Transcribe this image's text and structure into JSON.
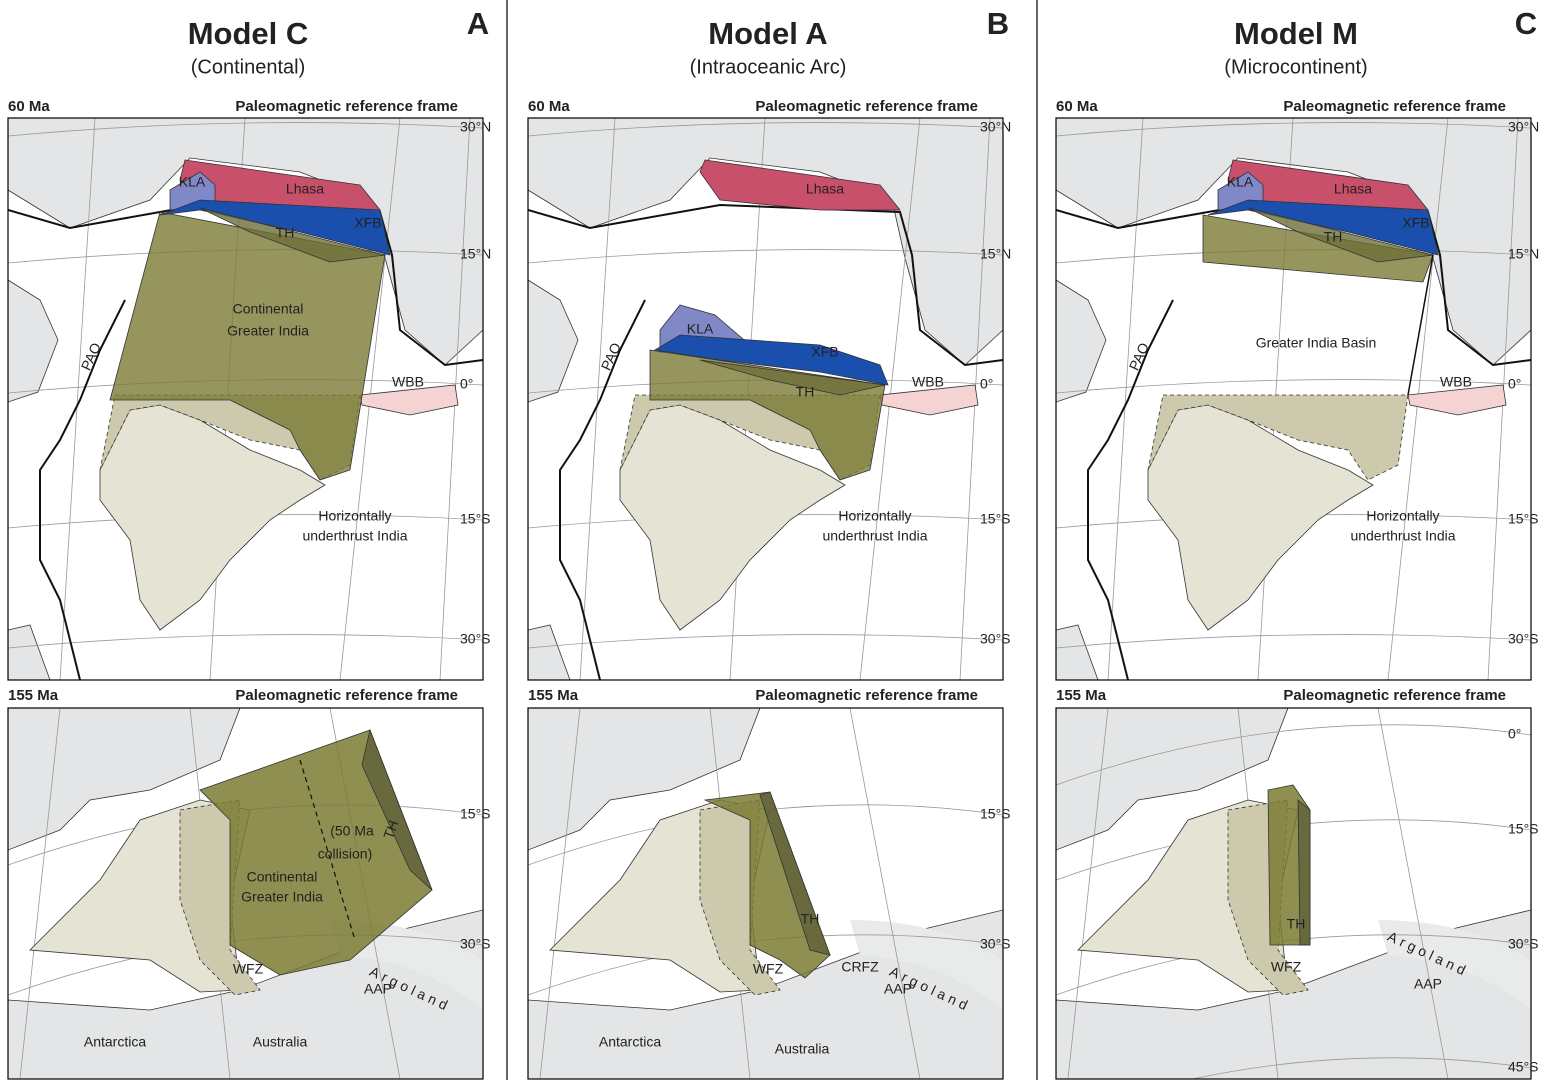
{
  "panels": [
    {
      "letter": "A",
      "title": "Model C",
      "subtitle": "(Continental)",
      "top_map": {
        "age": "60 Ma",
        "frame": "Paleomagnetic reference frame",
        "latitudes": [
          "30°N",
          "15°N",
          "0°",
          "15°S",
          "30°S"
        ],
        "labels": [
          "KLA",
          "Lhasa",
          "XFB",
          "TH",
          "Continental",
          "Greater India",
          "PAO",
          "WBB",
          "Horizontally",
          "underthrust India"
        ]
      },
      "bottom_map": {
        "age": "155 Ma",
        "frame": "Paleomagnetic reference frame",
        "latitudes": [
          "15°S",
          "30°S"
        ],
        "labels": [
          "(50 Ma",
          "collision)",
          "TH",
          "Continental",
          "Greater India",
          "WFZ",
          "Argoland",
          "AAP",
          "Antarctica",
          "Australia"
        ]
      }
    },
    {
      "letter": "B",
      "title": "Model A",
      "subtitle": "(Intraoceanic Arc)",
      "top_map": {
        "age": "60 Ma",
        "frame": "Paleomagnetic reference frame",
        "latitudes": [
          "30°N",
          "15°N",
          "0°",
          "15°S",
          "30°S"
        ],
        "labels": [
          "Lhasa",
          "KLA",
          "XFB",
          "PAO",
          "WBB",
          "TH",
          "Horizontally",
          "underthrust India"
        ]
      },
      "bottom_map": {
        "age": "155 Ma",
        "frame": "Paleomagnetic reference frame",
        "latitudes": [
          "15°S",
          "30°S"
        ],
        "labels": [
          "TH",
          "WFZ",
          "CRFZ",
          "Argoland",
          "AAP",
          "Antarctica",
          "Australia"
        ]
      }
    },
    {
      "letter": "C",
      "title": "Model M",
      "subtitle": "(Microcontinent)",
      "top_map": {
        "age": "60 Ma",
        "frame": "Paleomagnetic reference frame",
        "latitudes": [
          "30°N",
          "15°N",
          "0°",
          "15°S",
          "30°S"
        ],
        "labels": [
          "KLA",
          "Lhasa",
          "XFB",
          "TH",
          "Greater India Basin",
          "PAO",
          "WBB",
          "Horizontally",
          "underthrust India"
        ]
      },
      "bottom_map": {
        "age": "155 Ma",
        "frame": "Paleomagnetic reference frame",
        "latitudes": [
          "0°",
          "15°S",
          "30°S",
          "45°S"
        ],
        "labels": [
          "TH",
          "WFZ",
          "Argoland",
          "AAP"
        ]
      }
    }
  ]
}
